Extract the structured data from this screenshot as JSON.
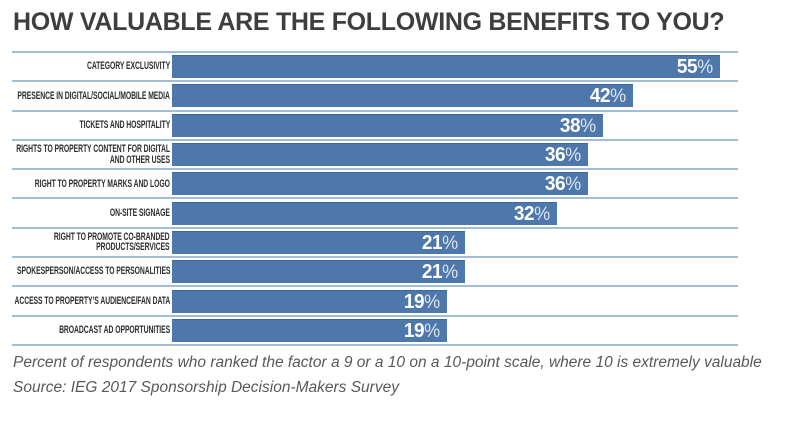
{
  "title": "HOW VALUABLE ARE THE FOLLOWING BENEFITS TO YOU?",
  "footnote": {
    "line1": "Percent of respondents who ranked the factor a 9 or a 10 on a 10-point scale, where 10 is extremely valuable",
    "line2": "Source: IEG 2017 Sponsorship Decision-Makers Survey"
  },
  "colors": {
    "background": "#ffffff",
    "bar_fill": "#4e78ac",
    "bar_top_edge": "#40689d",
    "separator_line": "#a3bdd7",
    "title_text": "#3e3e3e",
    "label_text": "#2e2e2e",
    "value_text": "#ffffff",
    "footnote_text": "#58595b"
  },
  "chart_data": {
    "type": "bar",
    "orientation": "horizontal",
    "title": "HOW VALUABLE ARE THE FOLLOWING BENEFITS TO YOU?",
    "value_suffix": "%",
    "categories": [
      [
        "CATEGORY EXCLUSIVITY"
      ],
      [
        "PRESENCE IN DIGITAL/SOCIAL/MOBILE MEDIA"
      ],
      [
        "TICKETS AND HOSPITALITY"
      ],
      [
        "RIGHTS TO PROPERTY CONTENT FOR DIGITAL",
        "AND OTHER USES"
      ],
      [
        "RIGHT TO PROPERTY MARKS AND LOGO"
      ],
      [
        "ON-SITE SIGNAGE"
      ],
      [
        "RIGHT TO PROMOTE CO-BRANDED",
        "PRODUCTS/SERVICES"
      ],
      [
        "SPOKESPERSON/ACCESS TO PERSONALITIES"
      ],
      [
        "ACCESS TO PROPERTY’S AUDIENCE/FAN DATA"
      ],
      [
        "BROADCAST AD OPPORTUNITIES"
      ]
    ],
    "values": [
      55,
      42,
      38,
      36,
      36,
      32,
      21,
      21,
      19,
      19
    ],
    "xlabel": "",
    "ylabel": "",
    "grid": false,
    "legend": false,
    "data_labels": "inside-end",
    "note": "Percent of respondents who ranked the factor a 9 or a 10 on a 10-point scale, where 10 is extremely valuable",
    "source": "Source: IEG 2017 Sponsorship Decision-Makers Survey"
  }
}
